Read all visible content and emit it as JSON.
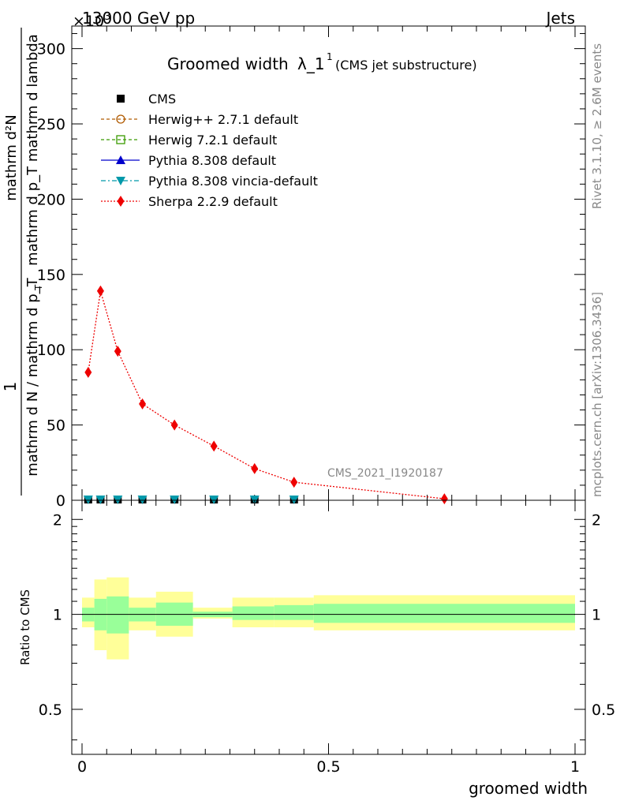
{
  "header": {
    "process": "13000 GeV pp",
    "category": "Jets",
    "exponent": "×10",
    "exponent_power": "3"
  },
  "side": {
    "rivet": "Rivet 3.1.10, ≥ 2.6M events",
    "mcplots": "mcplots.cern.ch [arXiv:1306.3436]"
  },
  "watermark": "CMS_2021_I1920187",
  "chart_data": [
    {
      "type": "line",
      "title_main": "Groomed width",
      "title_lambda": "λ_1",
      "title_sup": "1",
      "title_sub": "(CMS jet substructure)",
      "ylabel_top": "1",
      "ylabel_den": "mathrm d N / mathrm d p_T",
      "ylabel_num_1": "mathrm d²N",
      "ylabel_num_2": "mathrm d p_T mathrm d lambda",
      "ylabel_T": "T",
      "xlim": [
        0,
        1
      ],
      "ylim": [
        0,
        315
      ],
      "y_ticks": [
        0,
        50,
        100,
        150,
        200,
        250,
        300
      ],
      "y_tick_labels": [
        "0",
        "50",
        "100",
        "150",
        "200",
        "250",
        "300"
      ],
      "legend_position": "top-left",
      "series": [
        {
          "name": "CMS",
          "color": "#000000",
          "marker": "square",
          "x": [
            0.0125,
            0.0375,
            0.0725,
            0.1225,
            0.1875,
            0.2675,
            0.35,
            0.43
          ],
          "y": [
            0.5,
            0.5,
            0.5,
            0.5,
            0.5,
            0.5,
            0.5,
            0.5
          ]
        },
        {
          "name": "Herwig++ 2.7.1 default",
          "color": "#b05a00",
          "marker": "open-circle",
          "x": [],
          "y": []
        },
        {
          "name": "Herwig 7.2.1 default",
          "color": "#3a9a00",
          "marker": "open-square",
          "x": [],
          "y": []
        },
        {
          "name": "Pythia 8.308 default",
          "color": "#0000cc",
          "marker": "triangle-up",
          "x": [],
          "y": []
        },
        {
          "name": "Pythia 8.308 vincia-default",
          "color": "#0099aa",
          "marker": "triangle-down",
          "x": [
            0.0125,
            0.0375,
            0.0725,
            0.1225,
            0.1875,
            0.2675,
            0.35,
            0.43
          ],
          "y": [
            0.5,
            0.5,
            0.5,
            0.5,
            0.5,
            0.5,
            0.5,
            0.5
          ]
        },
        {
          "name": "Sherpa 2.2.9 default",
          "color": "#ee0000",
          "marker": "diamond",
          "x": [
            0.0125,
            0.0375,
            0.0725,
            0.1225,
            0.1875,
            0.2675,
            0.35,
            0.43,
            0.735
          ],
          "y": [
            85,
            139,
            99,
            64,
            50,
            36,
            21,
            12,
            1
          ]
        }
      ]
    },
    {
      "type": "area",
      "ylabel": "Ratio to CMS",
      "xlabel": "groomed width",
      "xlim": [
        0,
        1
      ],
      "ylim": [
        0.36,
        2.3
      ],
      "log_y": true,
      "y_ticks": [
        0.5,
        1,
        2
      ],
      "y_tick_labels": [
        "0.5",
        "1",
        "2"
      ],
      "x_ticks": [
        0,
        0.5,
        1
      ],
      "x_tick_labels": [
        "0",
        "0.5",
        "1"
      ],
      "bins": [
        0,
        0.025,
        0.05,
        0.095,
        0.15,
        0.225,
        0.305,
        0.39,
        0.47,
        1.0
      ],
      "stat_band_low": [
        0.95,
        0.89,
        0.87,
        0.95,
        0.92,
        0.98,
        0.96,
        0.96,
        0.94
      ],
      "stat_band_high": [
        1.05,
        1.12,
        1.14,
        1.05,
        1.09,
        1.02,
        1.06,
        1.07,
        1.08
      ],
      "total_band_low": [
        0.91,
        0.77,
        0.72,
        0.89,
        0.85,
        0.97,
        0.91,
        0.91,
        0.89
      ],
      "total_band_high": [
        1.13,
        1.29,
        1.31,
        1.13,
        1.18,
        1.05,
        1.13,
        1.13,
        1.15
      ],
      "stat_color": "#99ff99",
      "total_color": "#ffff99"
    }
  ]
}
